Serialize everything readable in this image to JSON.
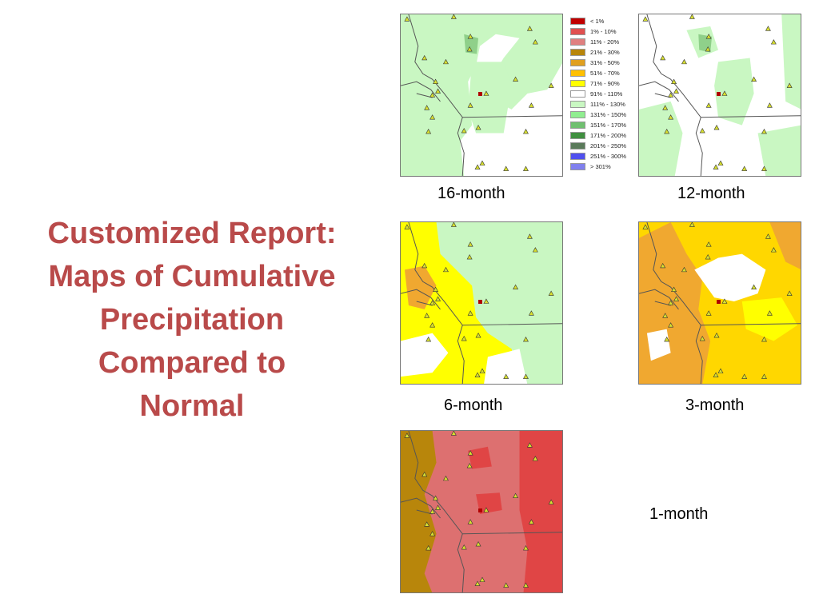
{
  "title_lines": [
    "Customized Report:",
    "Maps of Cumulative",
    "Precipitation",
    "Compared to",
    "Normal"
  ],
  "maps": [
    {
      "label": "16-month",
      "scheme": "green",
      "base": "#ffffff",
      "regions": [
        "#c9f7c2",
        "#8fd08a"
      ]
    },
    {
      "label": "12-month",
      "scheme": "green2",
      "base": "#ffffff",
      "regions": [
        "#c9f7c2",
        "#8fd08a"
      ]
    },
    {
      "label": "6-month",
      "scheme": "yellow",
      "base": "#ffff00",
      "regions": [
        "#c9f7c2",
        "#ffffff",
        "#f0a830"
      ]
    },
    {
      "label": "3-month",
      "scheme": "orange",
      "base": "#ffd700",
      "regions": [
        "#f0a830",
        "#ffffff",
        "#ffff00"
      ]
    },
    {
      "label": "1-month",
      "scheme": "red",
      "base": "#dd7070",
      "regions": [
        "#e04545",
        "#b8860b"
      ]
    }
  ],
  "legend": [
    {
      "label": "< 1%",
      "color": "#c00000"
    },
    {
      "label": "1% - 10%",
      "color": "#e05050"
    },
    {
      "label": "11% - 20%",
      "color": "#e08080"
    },
    {
      "label": "21% - 30%",
      "color": "#b8860b"
    },
    {
      "label": "31% - 50%",
      "color": "#e0a020"
    },
    {
      "label": "51% - 70%",
      "color": "#ffc000"
    },
    {
      "label": "71% - 90%",
      "color": "#ffff00"
    },
    {
      "label": "91% - 110%",
      "color": "#ffffff"
    },
    {
      "label": "111% - 130%",
      "color": "#c9f7c2"
    },
    {
      "label": "131% - 150%",
      "color": "#90ee90"
    },
    {
      "label": "151% - 170%",
      "color": "#70c070"
    },
    {
      "label": "171% - 200%",
      "color": "#409040"
    },
    {
      "label": "201% - 250%",
      "color": "#5a7a5a"
    },
    {
      "label": "251% - 300%",
      "color": "#5050ee"
    },
    {
      "label": "> 301%",
      "color": "#8080ee"
    }
  ]
}
